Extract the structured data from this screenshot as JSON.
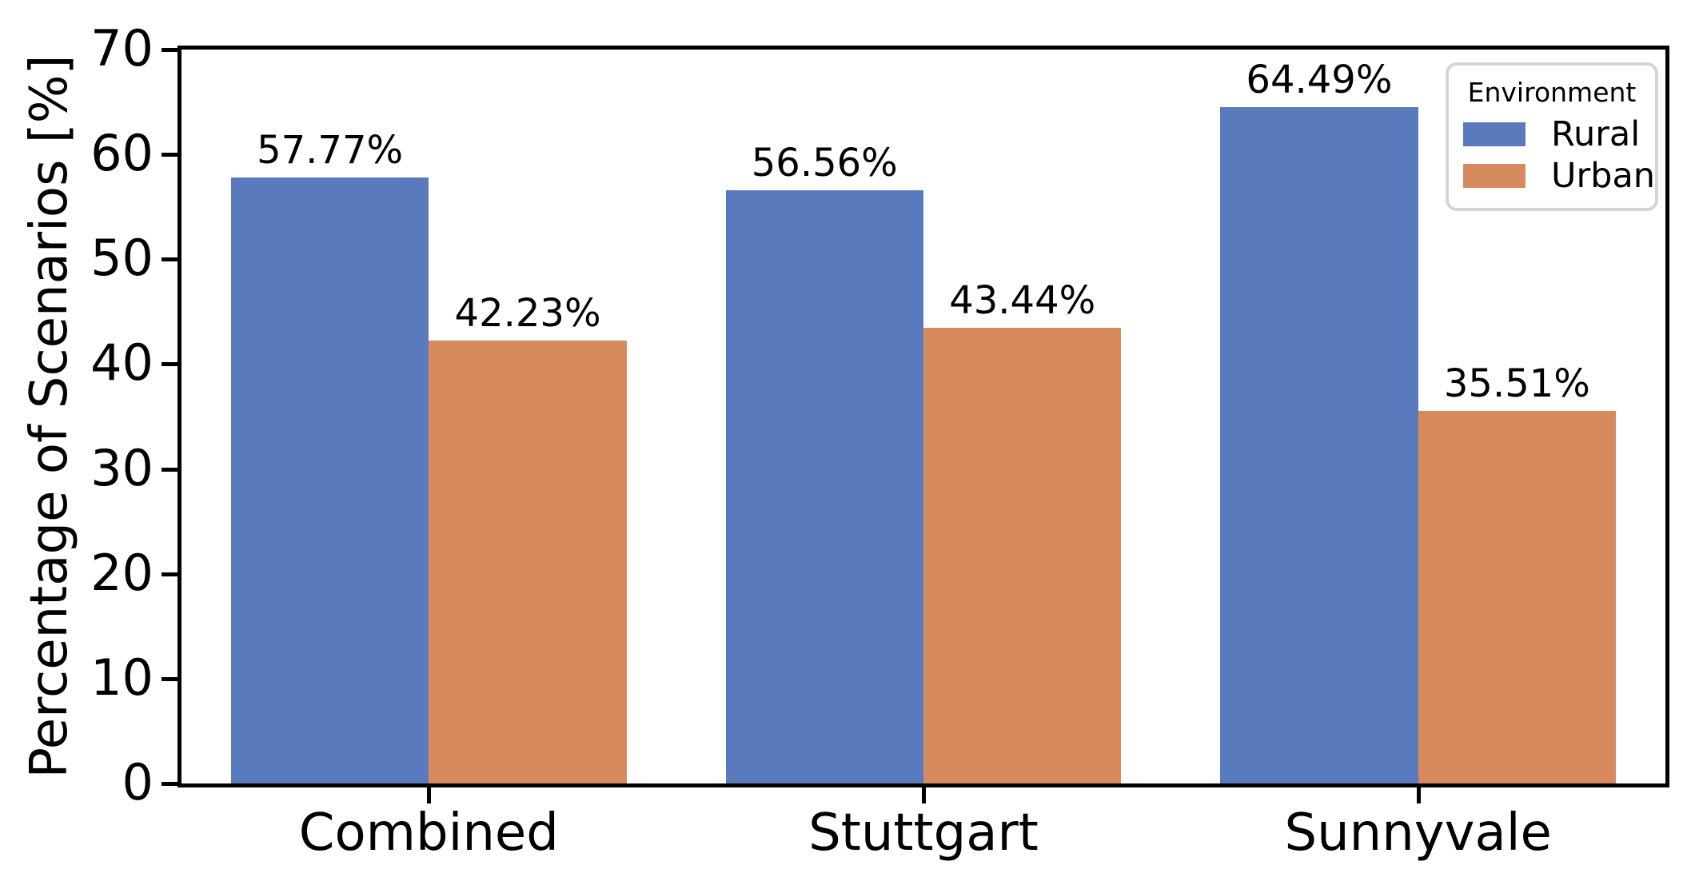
{
  "figure": {
    "background": "#ffffff",
    "spine_color": "#000000"
  },
  "chart_data": {
    "type": "bar",
    "title": "",
    "xlabel": "",
    "ylabel": "Percentage of Scenarios [%]",
    "categories": [
      "Combined",
      "Stuttgart",
      "Sunnyvale"
    ],
    "series": [
      {
        "name": "Rural",
        "color": "#597BBE",
        "values": [
          57.77,
          56.56,
          64.49
        ],
        "value_labels": [
          "57.77%",
          "56.56%",
          "64.49%"
        ]
      },
      {
        "name": "Urban",
        "color": "#D78A5E",
        "values": [
          42.23,
          43.44,
          35.51
        ],
        "value_labels": [
          "42.23%",
          "43.44%",
          "35.51%"
        ]
      }
    ],
    "ylim": [
      0,
      70
    ],
    "yticks": [
      "0",
      "10",
      "20",
      "30",
      "40",
      "50",
      "60",
      "70"
    ],
    "grid": false,
    "group_width_fraction": 0.8,
    "legend": {
      "title": "Environment",
      "position": "upper right",
      "border_color": "#d5d5d5",
      "entries": [
        "Rural",
        "Urban"
      ]
    }
  }
}
